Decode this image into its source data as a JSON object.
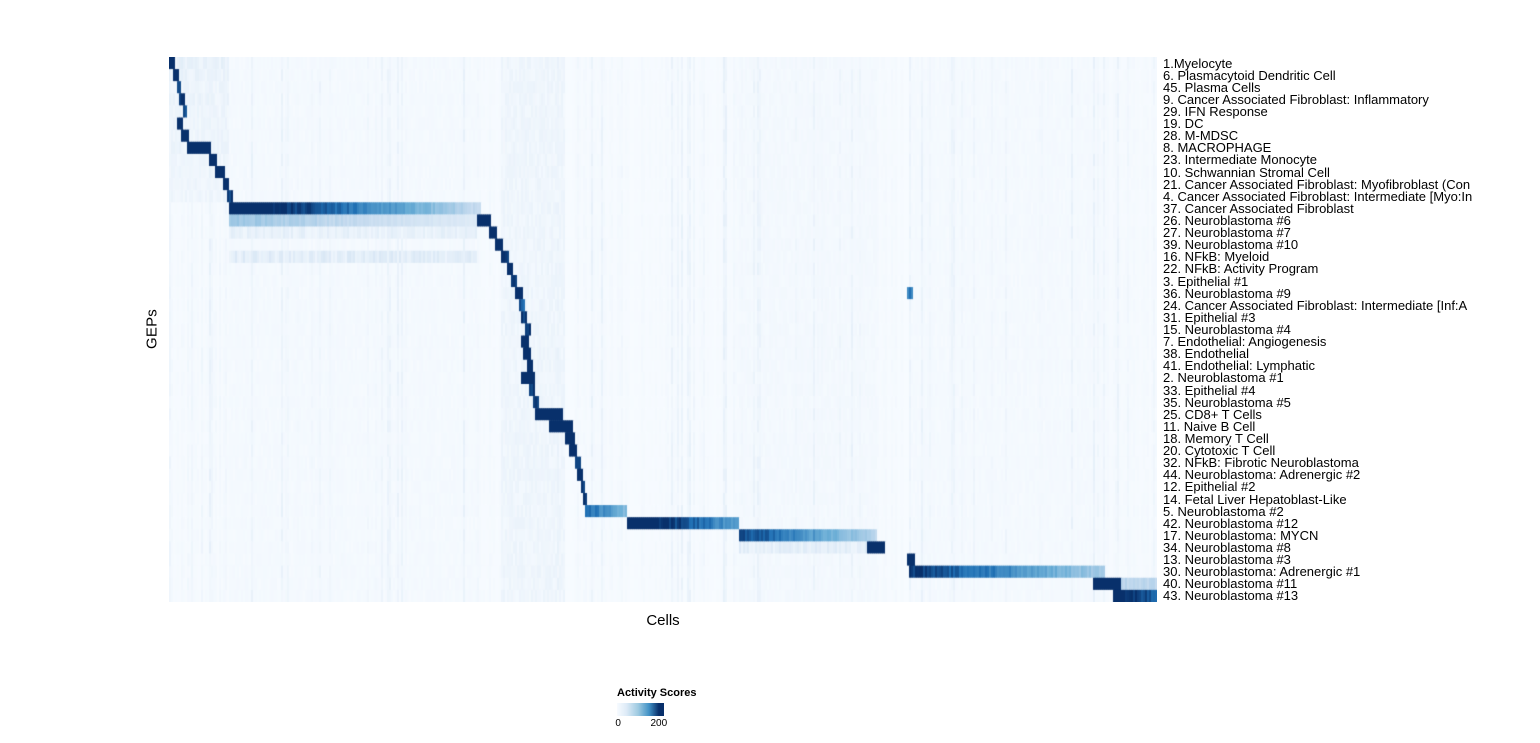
{
  "chart_data": {
    "type": "heatmap",
    "title": "",
    "xlabel": "Cells",
    "ylabel": "GEPs",
    "colormap": "Blues",
    "scale_max": 200,
    "colors": {
      "low": "#f7fbff",
      "mid": "#6baed6",
      "high": "#08306b"
    },
    "legend": {
      "title": "Activity Scores",
      "ticks": [
        0,
        200
      ],
      "min_label": "0",
      "max_label": "200"
    },
    "x_axis": {
      "tick_labels_shown": false,
      "description": "individual cells ordered by cluster"
    },
    "column_bands": [
      {
        "start": 0.06,
        "end": 0.315,
        "v": 3
      },
      {
        "start": 0.336,
        "end": 0.4,
        "v": 9
      },
      {
        "start": 0.575,
        "end": 0.716,
        "v": 4
      },
      {
        "start": 0.748,
        "end": 0.95,
        "v": 3
      }
    ],
    "rows": [
      {
        "label": "1.Myelocyte",
        "blocks": [
          {
            "start": 0.0,
            "end": 0.005,
            "v": 235
          }
        ],
        "bands": [
          {
            "start": 0.0,
            "end": 0.06,
            "v": 14
          }
        ]
      },
      {
        "label": "6. Plasmacytoid Dendritic Cell",
        "blocks": [
          {
            "start": 0.004,
            "end": 0.009,
            "v": 210
          }
        ],
        "bands": [
          {
            "start": 0.0,
            "end": 0.06,
            "v": 12
          }
        ]
      },
      {
        "label": "45. Plasma Cells",
        "blocks": [
          {
            "start": 0.008,
            "end": 0.011,
            "v": 190
          }
        ],
        "bands": [
          {
            "start": 0.0,
            "end": 0.06,
            "v": 10
          }
        ]
      },
      {
        "label": "9. Cancer Associated Fibroblast: Inflammatory",
        "blocks": [
          {
            "start": 0.01,
            "end": 0.015,
            "v": 205
          }
        ],
        "bands": [
          {
            "start": 0.0,
            "end": 0.06,
            "v": 10
          }
        ]
      },
      {
        "label": "29. IFN Response",
        "blocks": [
          {
            "start": 0.013,
            "end": 0.017,
            "v": 170
          }
        ],
        "bands": [
          {
            "start": 0.0,
            "end": 0.06,
            "v": 9
          }
        ]
      },
      {
        "label": "19. DC",
        "blocks": [
          {
            "start": 0.007,
            "end": 0.013,
            "v": 235
          }
        ],
        "bands": [
          {
            "start": 0.0,
            "end": 0.06,
            "v": 9
          }
        ]
      },
      {
        "label": "28. M-MDSC",
        "blocks": [
          {
            "start": 0.012,
            "end": 0.02,
            "v": 235
          }
        ],
        "bands": [
          {
            "start": 0.0,
            "end": 0.06,
            "v": 9
          }
        ]
      },
      {
        "label": "8. MACROPHAGE",
        "blocks": [
          {
            "start": 0.018,
            "end": 0.041,
            "v": 248
          }
        ],
        "bands": [
          {
            "start": 0.0,
            "end": 0.06,
            "v": 10
          }
        ]
      },
      {
        "label": "23. Intermediate Monocyte",
        "blocks": [
          {
            "start": 0.039,
            "end": 0.047,
            "v": 225
          }
        ],
        "bands": [
          {
            "start": 0.0,
            "end": 0.06,
            "v": 8
          }
        ]
      },
      {
        "label": "10. Schwannian Stromal Cell",
        "blocks": [
          {
            "start": 0.046,
            "end": 0.055,
            "v": 238
          }
        ],
        "bands": [
          {
            "start": 0.0,
            "end": 0.06,
            "v": 8
          }
        ]
      },
      {
        "label": "21. Cancer Associated Fibroblast: Myofibroblast (Con",
        "blocks": [
          {
            "start": 0.053,
            "end": 0.06,
            "v": 215
          }
        ],
        "bands": [
          {
            "start": 0.0,
            "end": 0.06,
            "v": 8
          }
        ]
      },
      {
        "label": "4. Cancer Associated Fibroblast: Intermediate [Myo:In",
        "blocks": [
          {
            "start": 0.057,
            "end": 0.063,
            "v": 195
          }
        ],
        "bands": [
          {
            "start": 0.0,
            "end": 0.06,
            "v": 8
          }
        ]
      },
      {
        "label": "37. Cancer Associated Fibroblast",
        "blocks": [
          {
            "start": 0.06,
            "end": 0.315,
            "v": 242,
            "fade": true,
            "v2": 45
          }
        ]
      },
      {
        "label": "26. Neuroblastoma #6",
        "blocks": [
          {
            "start": 0.06,
            "end": 0.31,
            "v": 75,
            "fade": true,
            "v2": 25
          },
          {
            "start": 0.31,
            "end": 0.324,
            "v": 238
          }
        ]
      },
      {
        "label": "27. Neuroblastoma #7",
        "blocks": [
          {
            "start": 0.322,
            "end": 0.331,
            "v": 230
          }
        ],
        "bands": [
          {
            "start": 0.06,
            "end": 0.31,
            "v": 15
          }
        ]
      },
      {
        "label": "39. Neuroblastoma #10",
        "blocks": [
          {
            "start": 0.329,
            "end": 0.338,
            "v": 222
          }
        ]
      },
      {
        "label": "16. NFkB: Myeloid",
        "blocks": [
          {
            "start": 0.336,
            "end": 0.344,
            "v": 205
          }
        ],
        "bands": [
          {
            "start": 0.06,
            "end": 0.31,
            "v": 20
          }
        ]
      },
      {
        "label": "22. NFkB: Activity Program",
        "blocks": [
          {
            "start": 0.341,
            "end": 0.348,
            "v": 212
          }
        ]
      },
      {
        "label": "3. Epithelial #1",
        "blocks": [
          {
            "start": 0.345,
            "end": 0.352,
            "v": 195
          }
        ]
      },
      {
        "label": "36. Neuroblastoma #9",
        "blocks": [
          {
            "start": 0.349,
            "end": 0.357,
            "v": 228
          },
          {
            "start": 0.746,
            "end": 0.753,
            "v": 140
          }
        ]
      },
      {
        "label": "24. Cancer Associated Fibroblast: Intermediate [Inf:A",
        "blocks": [
          {
            "start": 0.353,
            "end": 0.359,
            "v": 165
          }
        ]
      },
      {
        "label": "31. Epithelial #3",
        "blocks": [
          {
            "start": 0.356,
            "end": 0.362,
            "v": 188
          }
        ]
      },
      {
        "label": "15. Neuroblastoma #4",
        "blocks": [
          {
            "start": 0.359,
            "end": 0.365,
            "v": 202
          }
        ]
      },
      {
        "label": "7. Endothelial: Angiogenesis",
        "blocks": [
          {
            "start": 0.355,
            "end": 0.364,
            "v": 238
          }
        ]
      },
      {
        "label": "38. Endothelial",
        "blocks": [
          {
            "start": 0.358,
            "end": 0.366,
            "v": 228
          }
        ]
      },
      {
        "label": "41. Endothelial: Lymphatic",
        "blocks": [
          {
            "start": 0.361,
            "end": 0.368,
            "v": 208
          }
        ]
      },
      {
        "label": "2. Neuroblastoma #1",
        "blocks": [
          {
            "start": 0.356,
            "end": 0.369,
            "v": 246
          }
        ]
      },
      {
        "label": "33. Epithelial #4",
        "blocks": [
          {
            "start": 0.364,
            "end": 0.37,
            "v": 188
          }
        ]
      },
      {
        "label": "35. Neuroblastoma #5",
        "blocks": [
          {
            "start": 0.367,
            "end": 0.373,
            "v": 198
          }
        ]
      },
      {
        "label": "25. CD8+ T Cells",
        "blocks": [
          {
            "start": 0.369,
            "end": 0.397,
            "v": 246
          }
        ]
      },
      {
        "label": "11. Naive B Cell",
        "blocks": [
          {
            "start": 0.383,
            "end": 0.408,
            "v": 246
          }
        ]
      },
      {
        "label": "18. Memory T Cell",
        "blocks": [
          {
            "start": 0.399,
            "end": 0.409,
            "v": 224
          }
        ]
      },
      {
        "label": "20. Cytotoxic T Cell",
        "blocks": [
          {
            "start": 0.404,
            "end": 0.412,
            "v": 212
          }
        ]
      },
      {
        "label": "32. NFkB: Fibrotic Neuroblastoma",
        "blocks": [
          {
            "start": 0.409,
            "end": 0.415,
            "v": 192
          }
        ]
      },
      {
        "label": "44. Neuroblastoma: Adrenergic #2",
        "blocks": [
          {
            "start": 0.412,
            "end": 0.419,
            "v": 232
          }
        ]
      },
      {
        "label": "12. Epithelial #2",
        "blocks": [
          {
            "start": 0.416,
            "end": 0.421,
            "v": 182
          }
        ]
      },
      {
        "label": "14. Fetal Liver Hepatoblast-Like",
        "blocks": [
          {
            "start": 0.418,
            "end": 0.423,
            "v": 206
          }
        ]
      },
      {
        "label": "5. Neuroblastoma #2",
        "blocks": [
          {
            "start": 0.42,
            "end": 0.463,
            "v": 155,
            "fade": true,
            "v2": 85
          }
        ]
      },
      {
        "label": "42. Neuroblastoma #12",
        "blocks": [
          {
            "start": 0.462,
            "end": 0.575,
            "v": 250,
            "fade": true,
            "v2": 105
          }
        ]
      },
      {
        "label": "17. Neuroblastoma: MYCN",
        "blocks": [
          {
            "start": 0.575,
            "end": 0.716,
            "v": 185,
            "fade": true,
            "v2": 55
          }
        ]
      },
      {
        "label": "34. Neuroblastoma #8",
        "blocks": [
          {
            "start": 0.706,
            "end": 0.723,
            "v": 242
          }
        ],
        "bands": [
          {
            "start": 0.575,
            "end": 0.706,
            "v": 18
          }
        ]
      },
      {
        "label": "13. Neuroblastoma #3",
        "blocks": [
          {
            "start": 0.745,
            "end": 0.754,
            "v": 238
          }
        ]
      },
      {
        "label": "30. Neuroblastoma: Adrenergic #1",
        "blocks": [
          {
            "start": 0.748,
            "end": 0.946,
            "v": 195,
            "fade": true,
            "v2": 65
          }
        ]
      },
      {
        "label": "40. Neuroblastoma #11",
        "blocks": [
          {
            "start": 0.935,
            "end": 0.963,
            "v": 228
          },
          {
            "start": 0.963,
            "end": 1.0,
            "v": 55
          }
        ]
      },
      {
        "label": "43. Neuroblastoma #13",
        "blocks": [
          {
            "start": 0.954,
            "end": 1.0,
            "v": 238,
            "fade": true,
            "v2": 150
          }
        ]
      }
    ]
  }
}
